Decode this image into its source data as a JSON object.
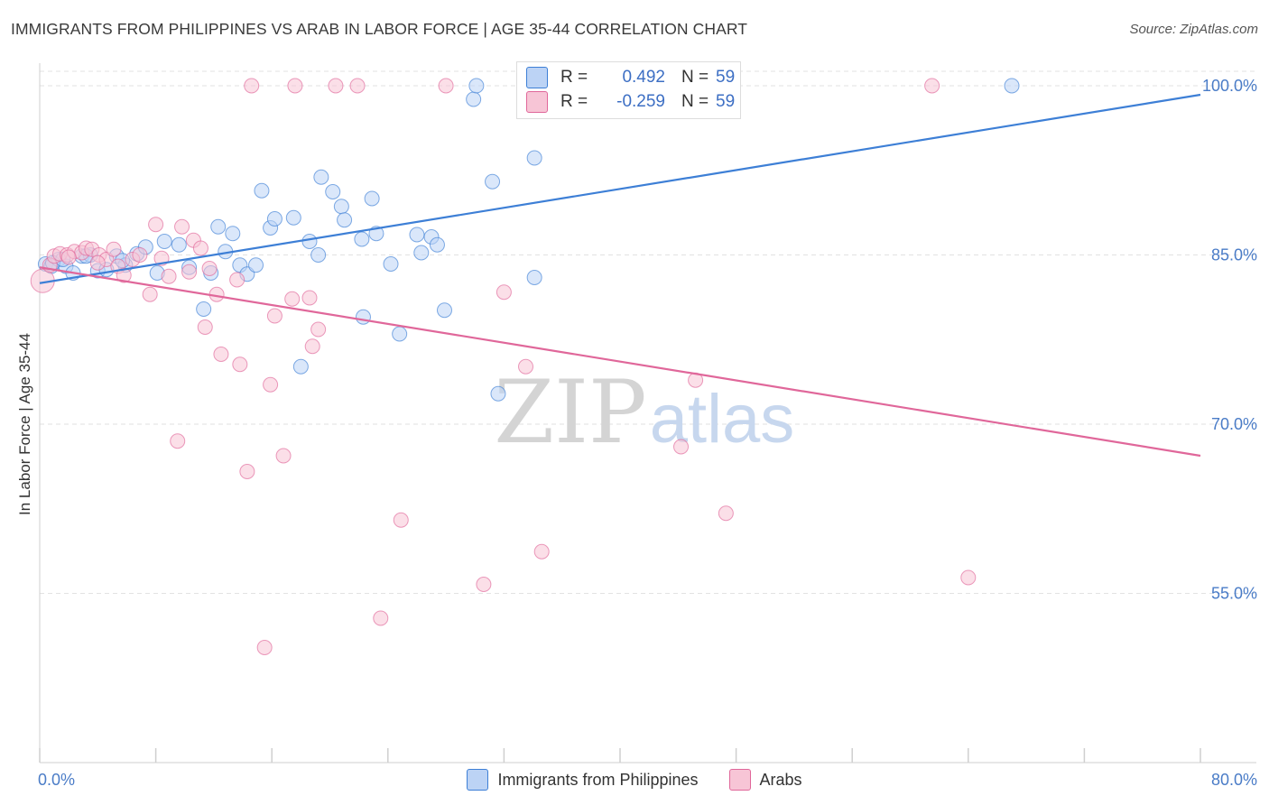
{
  "title": "IMMIGRANTS FROM PHILIPPINES VS ARAB IN LABOR FORCE | AGE 35-44 CORRELATION CHART",
  "source": "Source: ZipAtlas.com",
  "watermark": {
    "zip": "ZIP",
    "atlas": "atlas"
  },
  "colors": {
    "blue": "#3d7fd6",
    "blue_fill": "#bcd3f5",
    "pink": "#e0679a",
    "pink_fill": "#f7c5d6",
    "grid": "#e2e2e2",
    "axis_text": "#4a7cc7"
  },
  "stats": [
    {
      "r_label": "R =",
      "r": "0.492",
      "n_label": "N =",
      "n": "59"
    },
    {
      "r_label": "R =",
      "r": "-0.259",
      "n_label": "N =",
      "n": "59"
    }
  ],
  "legend": [
    "Immigrants from Philippines",
    "Arabs"
  ],
  "chart_data": {
    "type": "scatter",
    "xlabel": "",
    "ylabel": "In Labor Force | Age 35-44",
    "xlim": [
      0,
      80
    ],
    "ylim": [
      40,
      102
    ],
    "x_tick_labels": [
      {
        "value": 0,
        "label": "0.0%"
      },
      {
        "value": 80,
        "label": "80.0%"
      }
    ],
    "y_tick_labels": [
      {
        "value": 100,
        "label": "100.0%"
      },
      {
        "value": 85,
        "label": "85.0%"
      },
      {
        "value": 70,
        "label": "70.0%"
      },
      {
        "value": 55,
        "label": "55.0%"
      }
    ],
    "grid": true,
    "series": [
      {
        "name": "Immigrants from Philippines",
        "color": "#3d7fd6",
        "trend": [
          [
            0,
            82.5
          ],
          [
            80,
            99.2
          ]
        ],
        "points": [
          [
            0.4,
            84.2
          ],
          [
            0.8,
            84.0
          ],
          [
            1.3,
            84.6
          ],
          [
            1.8,
            84.0
          ],
          [
            2.3,
            83.4
          ],
          [
            2.9,
            84.9
          ],
          [
            3.5,
            85.0
          ],
          [
            4.0,
            83.6
          ],
          [
            4.6,
            83.7
          ],
          [
            5.3,
            84.9
          ],
          [
            5.9,
            84.1
          ],
          [
            6.7,
            85.1
          ],
          [
            7.3,
            85.7
          ],
          [
            8.1,
            83.4
          ],
          [
            8.6,
            86.2
          ],
          [
            9.6,
            85.9
          ],
          [
            10.3,
            83.9
          ],
          [
            11.3,
            80.2
          ],
          [
            11.8,
            83.4
          ],
          [
            12.3,
            87.5
          ],
          [
            12.8,
            85.3
          ],
          [
            13.3,
            86.9
          ],
          [
            13.8,
            84.1
          ],
          [
            14.3,
            83.3
          ],
          [
            14.9,
            84.1
          ],
          [
            15.3,
            90.7
          ],
          [
            15.9,
            87.4
          ],
          [
            16.2,
            88.2
          ],
          [
            17.5,
            88.3
          ],
          [
            18.0,
            75.1
          ],
          [
            18.6,
            86.2
          ],
          [
            19.2,
            85.0
          ],
          [
            19.4,
            91.9
          ],
          [
            20.2,
            90.6
          ],
          [
            20.8,
            89.3
          ],
          [
            21.0,
            88.1
          ],
          [
            22.2,
            86.4
          ],
          [
            22.3,
            79.5
          ],
          [
            22.9,
            90.0
          ],
          [
            23.2,
            86.9
          ],
          [
            24.2,
            84.2
          ],
          [
            24.8,
            78.0
          ],
          [
            26.0,
            86.8
          ],
          [
            26.3,
            85.2
          ],
          [
            27.0,
            86.6
          ],
          [
            27.4,
            85.9
          ],
          [
            27.9,
            80.1
          ],
          [
            29.9,
            98.8
          ],
          [
            30.1,
            100.0
          ],
          [
            31.2,
            91.5
          ],
          [
            31.6,
            72.7
          ],
          [
            34.1,
            93.6
          ],
          [
            34.1,
            83.0
          ],
          [
            47.2,
            100.0
          ],
          [
            67.0,
            100.0
          ],
          [
            0.9,
            84.3
          ],
          [
            1.6,
            84.6
          ],
          [
            3.2,
            84.9
          ],
          [
            5.7,
            84.5
          ]
        ]
      },
      {
        "name": "Arabs",
        "color": "#e0679a",
        "trend": [
          [
            0,
            83.9
          ],
          [
            80,
            67.2
          ]
        ],
        "points": [
          [
            0.2,
            82.7
          ],
          [
            0.7,
            84.1
          ],
          [
            1.0,
            84.9
          ],
          [
            1.4,
            85.1
          ],
          [
            1.9,
            85.0
          ],
          [
            2.4,
            85.3
          ],
          [
            2.9,
            85.2
          ],
          [
            3.2,
            85.6
          ],
          [
            3.6,
            85.5
          ],
          [
            4.1,
            85.0
          ],
          [
            4.6,
            84.6
          ],
          [
            5.1,
            85.5
          ],
          [
            5.4,
            84.0
          ],
          [
            5.8,
            83.2
          ],
          [
            6.4,
            84.6
          ],
          [
            6.9,
            85.0
          ],
          [
            7.6,
            81.5
          ],
          [
            8.0,
            87.7
          ],
          [
            8.4,
            84.7
          ],
          [
            8.9,
            83.1
          ],
          [
            9.5,
            68.5
          ],
          [
            9.8,
            87.5
          ],
          [
            10.3,
            83.5
          ],
          [
            10.6,
            86.3
          ],
          [
            11.1,
            85.6
          ],
          [
            11.4,
            78.6
          ],
          [
            11.7,
            83.8
          ],
          [
            12.2,
            81.5
          ],
          [
            12.5,
            76.2
          ],
          [
            13.6,
            82.8
          ],
          [
            13.8,
            75.3
          ],
          [
            14.3,
            65.8
          ],
          [
            14.6,
            100.0
          ],
          [
            15.5,
            50.2
          ],
          [
            15.9,
            73.5
          ],
          [
            16.2,
            79.6
          ],
          [
            16.8,
            67.2
          ],
          [
            17.4,
            81.1
          ],
          [
            17.6,
            100.0
          ],
          [
            18.6,
            81.2
          ],
          [
            18.8,
            76.9
          ],
          [
            19.2,
            78.4
          ],
          [
            20.4,
            100.0
          ],
          [
            21.9,
            100.0
          ],
          [
            23.5,
            52.8
          ],
          [
            24.9,
            61.5
          ],
          [
            28.0,
            100.0
          ],
          [
            30.6,
            55.8
          ],
          [
            32.0,
            81.7
          ],
          [
            33.5,
            75.1
          ],
          [
            34.6,
            58.7
          ],
          [
            44.2,
            68.0
          ],
          [
            45.2,
            73.9
          ],
          [
            47.3,
            62.1
          ],
          [
            47.6,
            100.0
          ],
          [
            61.5,
            100.0
          ],
          [
            64.0,
            56.4
          ],
          [
            2.0,
            84.8
          ],
          [
            4.0,
            84.3
          ]
        ]
      }
    ]
  }
}
